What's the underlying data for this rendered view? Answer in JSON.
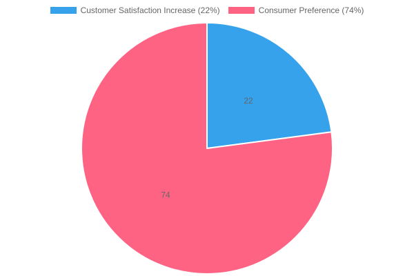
{
  "chart_data": {
    "type": "pie",
    "series": [
      {
        "name": "Customer Satisfaction Increase (22%)",
        "value": 22,
        "label": "22",
        "color": "#36A2EB"
      },
      {
        "name": "Consumer Preference (74%)",
        "value": 74,
        "label": "74",
        "color": "#FF6384"
      }
    ],
    "legend_position": "top"
  }
}
